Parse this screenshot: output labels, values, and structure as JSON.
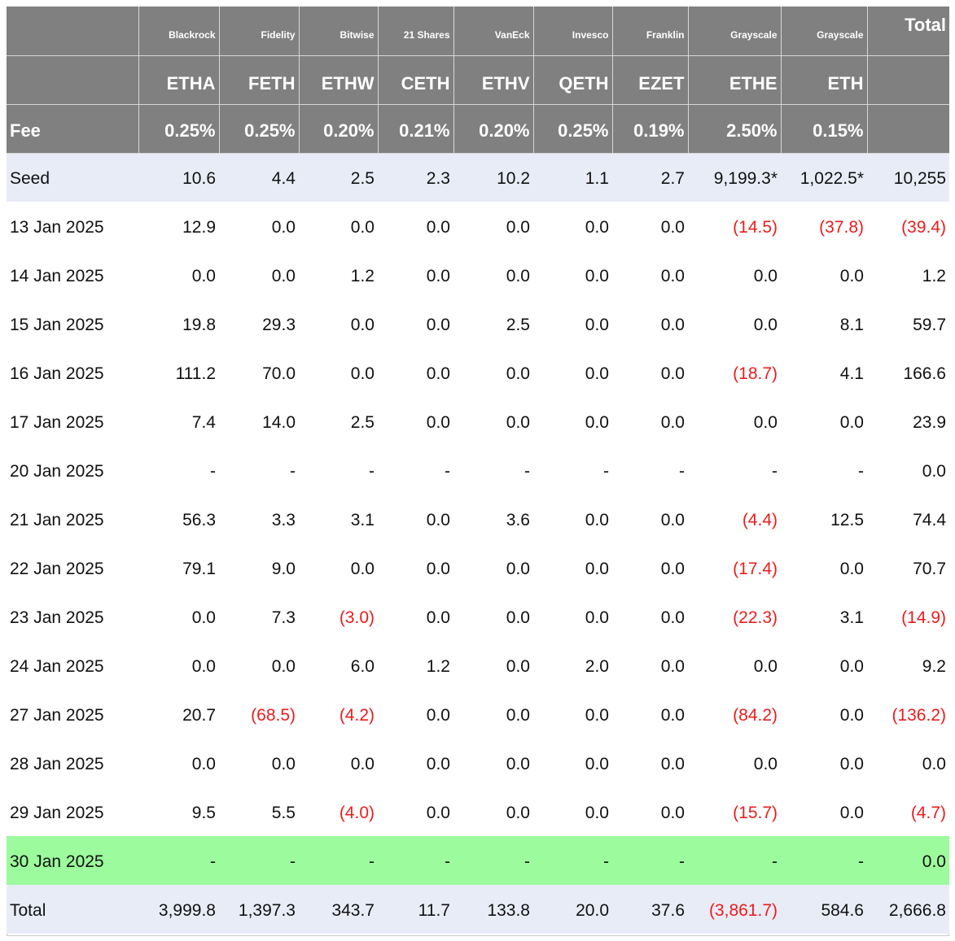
{
  "columns": [
    {
      "issuer": "Blackrock",
      "ticker": "ETHA",
      "fee": "0.25%"
    },
    {
      "issuer": "Fidelity",
      "ticker": "FETH",
      "fee": "0.25%"
    },
    {
      "issuer": "Bitwise",
      "ticker": "ETHW",
      "fee": "0.20%"
    },
    {
      "issuer": "21 Shares",
      "ticker": "CETH",
      "fee": "0.21%"
    },
    {
      "issuer": "VanEck",
      "ticker": "ETHV",
      "fee": "0.20%"
    },
    {
      "issuer": "Invesco",
      "ticker": "QETH",
      "fee": "0.25%"
    },
    {
      "issuer": "Franklin",
      "ticker": "EZET",
      "fee": "0.19%"
    },
    {
      "issuer": "Grayscale",
      "ticker": "ETHE",
      "fee": "2.50%"
    },
    {
      "issuer": "Grayscale",
      "ticker": "ETH",
      "fee": "0.15%"
    }
  ],
  "header": {
    "total_label": "Total",
    "fee_label": "Fee"
  },
  "rows": [
    {
      "label": "Seed",
      "values": [
        "10.6",
        "4.4",
        "2.5",
        "2.3",
        "10.2",
        "1.1",
        "2.7",
        "9,199.3*",
        "1,022.5*"
      ],
      "total": "10,255"
    },
    {
      "label": "13 Jan 2025",
      "values": [
        "12.9",
        "0.0",
        "0.0",
        "0.0",
        "0.0",
        "0.0",
        "0.0",
        "(14.5)",
        "(37.8)"
      ],
      "total": "(39.4)"
    },
    {
      "label": "14 Jan 2025",
      "values": [
        "0.0",
        "0.0",
        "1.2",
        "0.0",
        "0.0",
        "0.0",
        "0.0",
        "0.0",
        "0.0"
      ],
      "total": "1.2"
    },
    {
      "label": "15 Jan 2025",
      "values": [
        "19.8",
        "29.3",
        "0.0",
        "0.0",
        "2.5",
        "0.0",
        "0.0",
        "0.0",
        "8.1"
      ],
      "total": "59.7"
    },
    {
      "label": "16 Jan 2025",
      "values": [
        "111.2",
        "70.0",
        "0.0",
        "0.0",
        "0.0",
        "0.0",
        "0.0",
        "(18.7)",
        "4.1"
      ],
      "total": "166.6"
    },
    {
      "label": "17 Jan 2025",
      "values": [
        "7.4",
        "14.0",
        "2.5",
        "0.0",
        "0.0",
        "0.0",
        "0.0",
        "0.0",
        "0.0"
      ],
      "total": "23.9"
    },
    {
      "label": "20 Jan 2025",
      "values": [
        "-",
        "-",
        "-",
        "-",
        "-",
        "-",
        "-",
        "-",
        "-"
      ],
      "total": "0.0"
    },
    {
      "label": "21 Jan 2025",
      "values": [
        "56.3",
        "3.3",
        "3.1",
        "0.0",
        "3.6",
        "0.0",
        "0.0",
        "(4.4)",
        "12.5"
      ],
      "total": "74.4"
    },
    {
      "label": "22 Jan 2025",
      "values": [
        "79.1",
        "9.0",
        "0.0",
        "0.0",
        "0.0",
        "0.0",
        "0.0",
        "(17.4)",
        "0.0"
      ],
      "total": "70.7"
    },
    {
      "label": "23 Jan 2025",
      "values": [
        "0.0",
        "7.3",
        "(3.0)",
        "0.0",
        "0.0",
        "0.0",
        "0.0",
        "(22.3)",
        "3.1"
      ],
      "total": "(14.9)"
    },
    {
      "label": "24 Jan 2025",
      "values": [
        "0.0",
        "0.0",
        "6.0",
        "1.2",
        "0.0",
        "2.0",
        "0.0",
        "0.0",
        "0.0"
      ],
      "total": "9.2"
    },
    {
      "label": "27 Jan 2025",
      "values": [
        "20.7",
        "(68.5)",
        "(4.2)",
        "0.0",
        "0.0",
        "0.0",
        "0.0",
        "(84.2)",
        "0.0"
      ],
      "total": "(136.2)"
    },
    {
      "label": "28 Jan 2025",
      "values": [
        "0.0",
        "0.0",
        "0.0",
        "0.0",
        "0.0",
        "0.0",
        "0.0",
        "0.0",
        "0.0"
      ],
      "total": "0.0"
    },
    {
      "label": "29 Jan 2025",
      "values": [
        "9.5",
        "5.5",
        "(4.0)",
        "0.0",
        "0.0",
        "0.0",
        "0.0",
        "(15.7)",
        "0.0"
      ],
      "total": "(4.7)"
    },
    {
      "label": "30 Jan 2025",
      "values": [
        "-",
        "-",
        "-",
        "-",
        "-",
        "-",
        "-",
        "-",
        "-"
      ],
      "total": "0.0"
    }
  ],
  "totals": {
    "label": "Total",
    "values": [
      "3,999.8",
      "1,397.3",
      "343.7",
      "11.7",
      "133.8",
      "20.0",
      "37.6",
      "(3,861.7)",
      "584.6"
    ],
    "total": "2,666.8"
  },
  "colors": {
    "header_bg": "#808080",
    "seed_bg": "#e8ecf7",
    "highlight_bg": "#9cfb9c",
    "negative_text": "#ee1b1b"
  }
}
